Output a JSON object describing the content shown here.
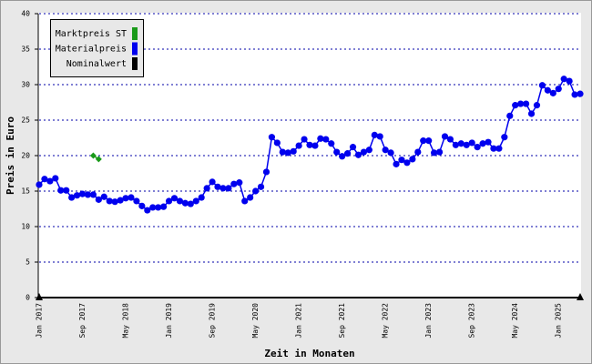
{
  "chart_data": {
    "type": "line",
    "xlabel": "Zeit in Monaten",
    "ylabel": "Preis in Euro",
    "categories": [
      "Jan 2017",
      null,
      null,
      null,
      null,
      null,
      null,
      null,
      "Sep 2017",
      null,
      null,
      null,
      null,
      null,
      null,
      null,
      "May 2018",
      null,
      null,
      null,
      null,
      null,
      null,
      null,
      "Jan 2019",
      null,
      null,
      null,
      null,
      null,
      null,
      null,
      "Sep 2019",
      null,
      null,
      null,
      null,
      null,
      null,
      null,
      "May 2020",
      null,
      null,
      null,
      null,
      null,
      null,
      null,
      "Jan 2021",
      null,
      null,
      null,
      null,
      null,
      null,
      null,
      "Sep 2021",
      null,
      null,
      null,
      null,
      null,
      null,
      null,
      "May 2022",
      null,
      null,
      null,
      null,
      null,
      null,
      null,
      "Jan 2023",
      null,
      null,
      null,
      null,
      null,
      null,
      null,
      "Sep 2023",
      null,
      null,
      null,
      null,
      null,
      null,
      null,
      "May 2024",
      null,
      null,
      null,
      null,
      null,
      null,
      null,
      "Jan 2025",
      null,
      null,
      null,
      null
    ],
    "series": [
      {
        "name": "Marktpreis ST",
        "color": "#1a9a1a",
        "values": [
          null,
          null,
          null,
          null,
          null,
          null,
          null,
          null,
          null,
          null,
          20.0,
          19.5,
          null,
          null,
          null,
          null,
          null,
          null,
          null,
          null,
          null,
          null,
          null,
          null,
          null,
          null,
          null,
          null,
          null,
          null,
          null,
          null,
          null,
          null,
          null,
          null,
          null,
          null,
          null,
          null,
          null,
          null,
          null,
          null,
          null,
          null,
          null,
          null,
          null,
          null,
          null,
          null,
          null,
          null,
          null,
          null,
          null,
          null,
          null,
          null,
          null,
          null,
          null,
          null,
          null,
          null,
          null,
          null,
          null,
          null,
          null,
          null,
          null,
          null,
          null,
          null,
          null,
          null,
          null,
          null,
          null,
          null,
          null,
          null,
          null,
          null,
          null,
          null,
          null,
          null,
          null,
          null,
          null,
          null,
          null,
          null,
          null,
          null,
          null,
          null,
          null
        ]
      },
      {
        "name": "Materialpreis",
        "color": "#0000ee",
        "values": [
          15.9,
          16.7,
          16.4,
          16.8,
          15.1,
          15.1,
          14.1,
          14.4,
          14.6,
          14.5,
          14.5,
          13.8,
          14.2,
          13.6,
          13.5,
          13.7,
          14.0,
          14.1,
          13.6,
          12.9,
          12.3,
          12.7,
          12.7,
          12.8,
          13.6,
          14.0,
          13.6,
          13.3,
          13.2,
          13.6,
          14.1,
          15.4,
          16.3,
          15.6,
          15.4,
          15.4,
          16.0,
          16.2,
          13.6,
          14.1,
          15.0,
          15.6,
          17.7,
          22.6,
          21.8,
          20.5,
          20.4,
          20.6,
          21.4,
          22.3,
          21.5,
          21.4,
          22.4,
          22.3,
          21.7,
          20.5,
          19.9,
          20.3,
          21.2,
          20.1,
          20.5,
          20.8,
          22.9,
          22.7,
          20.8,
          20.4,
          18.8,
          19.4,
          19.0,
          19.5,
          20.5,
          22.1,
          22.1,
          20.4,
          20.5,
          22.7,
          22.3,
          21.5,
          21.7,
          21.5,
          21.8,
          21.2,
          21.7,
          21.9,
          21.0,
          21.0,
          22.6,
          25.6,
          27.1,
          27.3,
          27.3,
          25.9,
          27.1,
          29.9,
          29.2,
          28.8,
          29.4,
          30.8,
          30.5,
          28.6,
          28.7
        ]
      },
      {
        "name": "Nominalwert",
        "color": "#000000",
        "values": [
          0,
          0,
          0,
          0,
          0,
          0,
          0,
          0,
          0,
          0,
          0,
          0,
          0,
          0,
          0,
          0,
          0,
          0,
          0,
          0,
          0,
          0,
          0,
          0,
          0,
          0,
          0,
          0,
          0,
          0,
          0,
          0,
          0,
          0,
          0,
          0,
          0,
          0,
          0,
          0,
          0,
          0,
          0,
          0,
          0,
          0,
          0,
          0,
          0,
          0,
          0,
          0,
          0,
          0,
          0,
          0,
          0,
          0,
          0,
          0,
          0,
          0,
          0,
          0,
          0,
          0,
          0,
          0,
          0,
          0,
          0,
          0,
          0,
          0,
          0,
          0,
          0,
          0,
          0,
          0,
          0,
          0,
          0,
          0,
          0,
          0,
          0,
          0,
          0,
          0,
          0,
          0,
          0,
          0,
          0,
          0,
          0,
          0,
          0,
          0,
          0
        ]
      }
    ],
    "ylim": [
      0,
      40
    ],
    "yticks": [
      0,
      5,
      10,
      15,
      20,
      25,
      30,
      35,
      40
    ],
    "grid": true,
    "legend": "upper left"
  }
}
